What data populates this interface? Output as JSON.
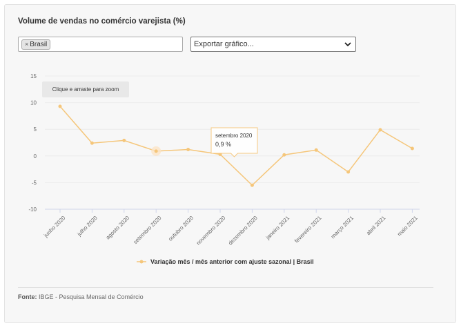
{
  "title": "Volume de vendas no comércio varejista (%)",
  "filter": {
    "tag_label": "Brasil",
    "remove_glyph": "×"
  },
  "export": {
    "label": "Exportar gráfico..."
  },
  "zoom_hint": "Clique e arraste para zoom",
  "tooltip": {
    "category": "setembro 2020",
    "value": "0,9 %"
  },
  "colors": {
    "series": "#f5c67a",
    "hover_halo": "#fbe3c6",
    "grid": "#ececec"
  },
  "source": {
    "label": "Fonte:",
    "text": "IBGE - Pesquisa Mensal de Comércio"
  },
  "chart_data": {
    "type": "line",
    "categories": [
      "junho 2020",
      "julho 2020",
      "agosto 2020",
      "setembro 2020",
      "outubro 2020",
      "novembro 2020",
      "dezembro 2020",
      "janeiro 2021",
      "fevereiro 2021",
      "março 2021",
      "abril 2021",
      "maio 2021"
    ],
    "series": [
      {
        "name": "Variação mês / mês anterior com ajuste sazonal | Brasil",
        "values": [
          9.3,
          2.4,
          2.9,
          0.9,
          1.2,
          0.3,
          -5.5,
          0.2,
          1.1,
          -3.0,
          4.9,
          1.4
        ]
      }
    ],
    "yticks": [
      15,
      10,
      5,
      0,
      -5,
      -10
    ],
    "ylim": [
      -10,
      15
    ],
    "grid": true,
    "legend": "bottom-center",
    "highlight_index": 3
  }
}
